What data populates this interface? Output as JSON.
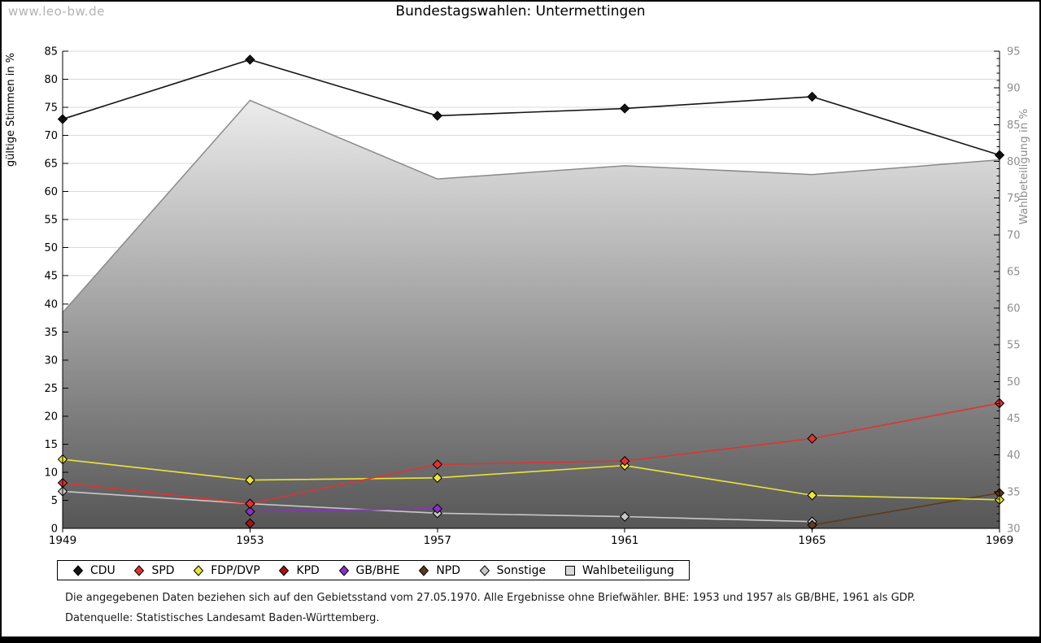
{
  "watermark": "www.leo-bw.de",
  "title": "Bundestagswahlen: Untermettingen",
  "notes": {
    "line1": "Die angegebenen Daten beziehen sich auf den Gebietsstand vom 27.05.1970. Alle Ergebnisse ohne Briefwähler. BHE: 1953 und 1957 als GB/BHE, 1961 als GDP.",
    "line2": "Datenquelle: Statistisches Landesamt Baden-Württemberg."
  },
  "chart_data": {
    "type": "line",
    "title": "Bundestagswahlen: Untermettingen",
    "categories": [
      1949,
      1953,
      1957,
      1961,
      1965,
      1969
    ],
    "grid": true,
    "legend_position": "bottom",
    "axes": {
      "left": {
        "label": "gültige Stimmen in %",
        "min": 0,
        "max": 85,
        "tick_step": 5
      },
      "right": {
        "label": "Wahlbeteiligung in %",
        "min": 30,
        "max": 95,
        "tick_step": 5
      }
    },
    "colors": {
      "grid": "#d9d9d9",
      "axis": "#000000",
      "right_axis_text": "#8e8e8e",
      "area_edge": "#8a8a8a",
      "area_gradient_top": "#fdfdfd",
      "area_gradient_bottom": "#565656"
    },
    "series": [
      {
        "name": "CDU",
        "type": "line",
        "axis": "left",
        "color": "#141414",
        "values": [
          72.9,
          83.5,
          73.5,
          74.8,
          76.9,
          66.5
        ]
      },
      {
        "name": "SPD",
        "type": "line",
        "axis": "left",
        "color": "#e03232",
        "values": [
          8.1,
          4.4,
          11.4,
          12.0,
          16.0,
          22.3
        ]
      },
      {
        "name": "FDP/DVP",
        "type": "line",
        "axis": "left",
        "color": "#ece43a",
        "values": [
          12.3,
          8.6,
          9.0,
          11.2,
          5.9,
          5.1
        ]
      },
      {
        "name": "KPD",
        "type": "line",
        "axis": "left",
        "color": "#a81111",
        "values": [
          null,
          0.9,
          null,
          null,
          null,
          null
        ]
      },
      {
        "name": "GB/BHE",
        "type": "line",
        "axis": "left",
        "color": "#8d2fc9",
        "values": [
          null,
          3.0,
          3.5,
          null,
          null,
          null
        ]
      },
      {
        "name": "NPD",
        "type": "line",
        "axis": "left",
        "color": "#5e3a1c",
        "values": [
          null,
          null,
          null,
          null,
          0.6,
          6.3
        ]
      },
      {
        "name": "Sonstige",
        "type": "line",
        "axis": "left",
        "color": "#c8c8c8",
        "values": [
          6.6,
          4.4,
          2.7,
          2.1,
          1.2,
          null
        ]
      },
      {
        "name": "Wahlbeteiligung",
        "type": "area",
        "axis": "right",
        "color": "#d8d8d8",
        "values": [
          59.4,
          88.3,
          77.6,
          79.4,
          78.2,
          80.2
        ]
      }
    ]
  }
}
